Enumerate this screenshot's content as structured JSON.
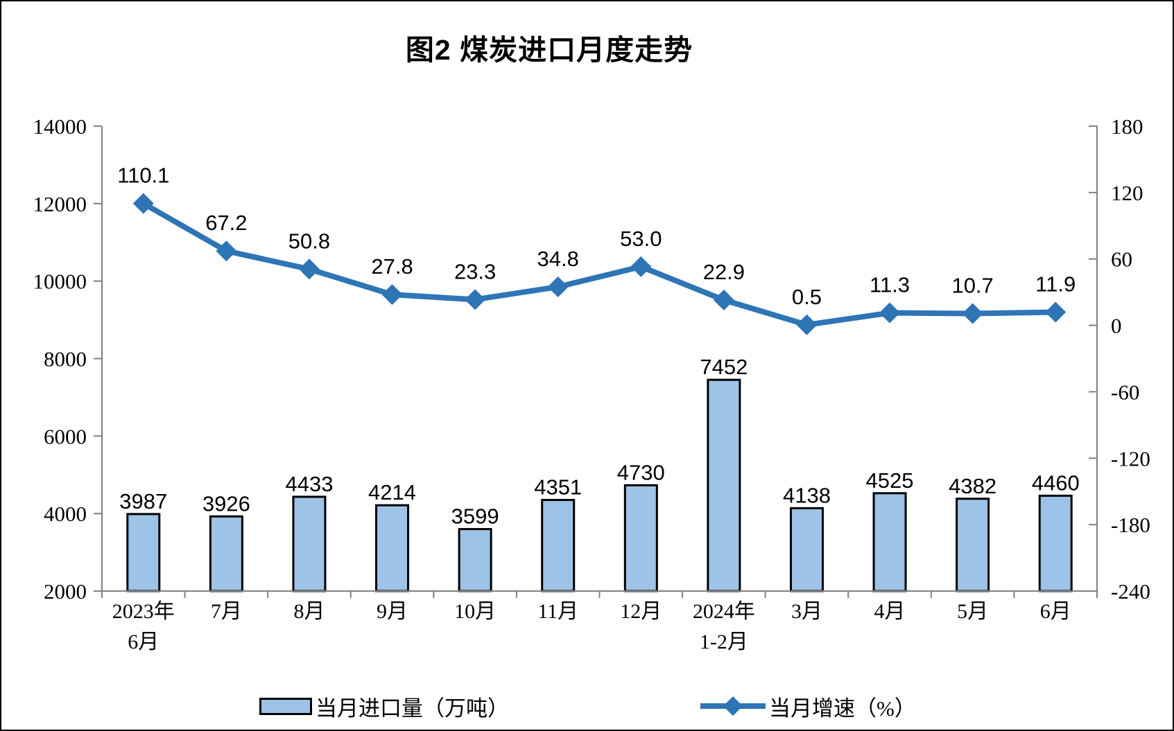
{
  "title": "图2 煤炭进口月度走势",
  "colors": {
    "bar_fill": "#9DC3E6",
    "bar_border": "#000000",
    "line": "#2E75B6",
    "axis": "#808080",
    "text": "#000000"
  },
  "legend": {
    "items": [
      {
        "label": "当月进口量（万吨）",
        "marker": "bar-swatch"
      },
      {
        "label": "当月增速（%）",
        "marker": "line-diamond"
      }
    ]
  },
  "chart_data": {
    "type": "combo-bar-line",
    "title": "图2 煤炭进口月度走势",
    "categories": [
      "2023年6月",
      "7月",
      "8月",
      "9月",
      "10月",
      "11月",
      "12月",
      "2024年1-2月",
      "3月",
      "4月",
      "5月",
      "6月"
    ],
    "category_lines": [
      [
        "2023年",
        "6月"
      ],
      [
        "7月"
      ],
      [
        "8月"
      ],
      [
        "9月"
      ],
      [
        "10月"
      ],
      [
        "11月"
      ],
      [
        "12月"
      ],
      [
        "2024年",
        "1-2月"
      ],
      [
        "3月"
      ],
      [
        "4月"
      ],
      [
        "5月"
      ],
      [
        "6月"
      ]
    ],
    "series": [
      {
        "name": "当月进口量（万吨）",
        "type": "bar",
        "axis": "left",
        "values": [
          3987,
          3926,
          4433,
          4214,
          3599,
          4351,
          4730,
          7452,
          4138,
          4525,
          4382,
          4460
        ],
        "labels": [
          "3987",
          "3926",
          "4433",
          "4214",
          "3599",
          "4351",
          "4730",
          "7452",
          "4138",
          "4525",
          "4382",
          "4460"
        ]
      },
      {
        "name": "当月增速（%）",
        "type": "line",
        "axis": "right",
        "marker": "diamond",
        "values": [
          110.1,
          67.2,
          50.8,
          27.8,
          23.3,
          34.8,
          53.0,
          22.9,
          0.5,
          11.3,
          10.7,
          11.9
        ],
        "labels": [
          "110.1",
          "67.2",
          "50.8",
          "27.8",
          "23.3",
          "34.8",
          "53.0",
          "22.9",
          "0.5",
          "11.3",
          "10.7",
          "11.9"
        ]
      }
    ],
    "left_axis": {
      "min": 2000,
      "max": 14000,
      "step": 2000,
      "tick_labels": [
        "2000",
        "4000",
        "6000",
        "8000",
        "10000",
        "12000",
        "14000"
      ]
    },
    "right_axis": {
      "min": -240,
      "max": 180,
      "step": 60,
      "tick_labels": [
        "-240",
        "-180",
        "-120",
        "-60",
        "0",
        "60",
        "120",
        "180"
      ]
    },
    "grid": false,
    "legend_position": "bottom"
  }
}
